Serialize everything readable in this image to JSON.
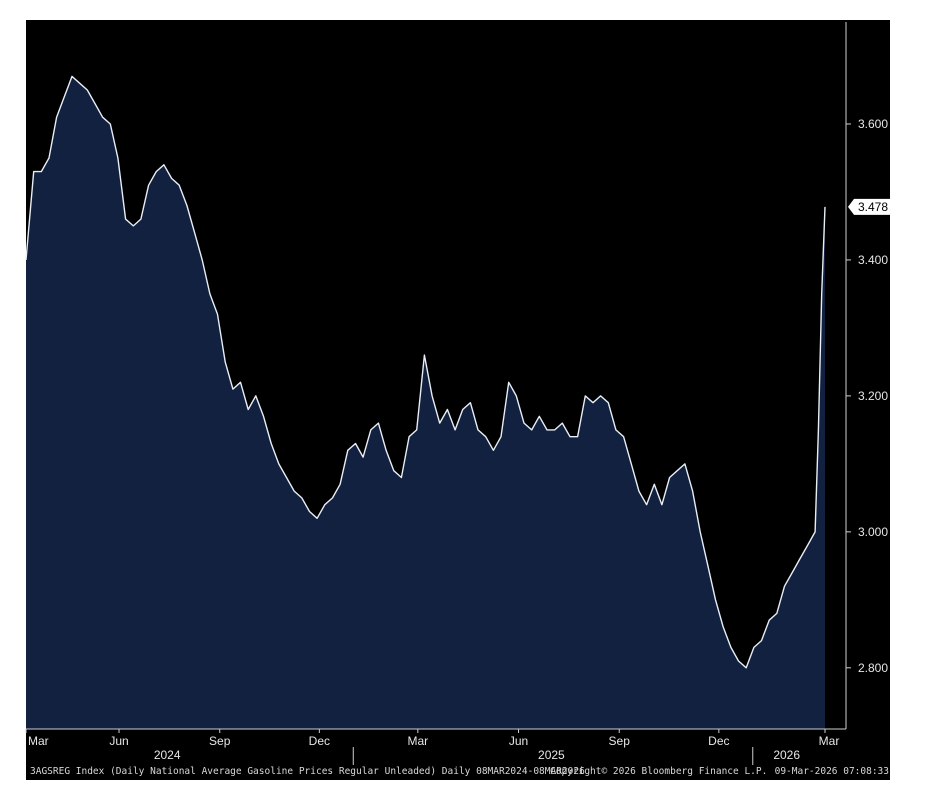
{
  "chart_data": {
    "type": "area",
    "series": [
      {
        "values": [
          [
            "2024-03-08",
            3.4
          ],
          [
            "2024-03-15",
            3.53
          ],
          [
            "2024-03-22",
            3.53
          ],
          [
            "2024-03-29",
            3.55
          ],
          [
            "2024-04-05",
            3.61
          ],
          [
            "2024-04-12",
            3.64
          ],
          [
            "2024-04-19",
            3.67
          ],
          [
            "2024-04-26",
            3.66
          ],
          [
            "2024-05-03",
            3.65
          ],
          [
            "2024-05-10",
            3.63
          ],
          [
            "2024-05-17",
            3.61
          ],
          [
            "2024-05-24",
            3.6
          ],
          [
            "2024-05-31",
            3.55
          ],
          [
            "2024-06-07",
            3.46
          ],
          [
            "2024-06-14",
            3.45
          ],
          [
            "2024-06-21",
            3.46
          ],
          [
            "2024-06-28",
            3.51
          ],
          [
            "2024-07-05",
            3.53
          ],
          [
            "2024-07-12",
            3.54
          ],
          [
            "2024-07-19",
            3.52
          ],
          [
            "2024-07-26",
            3.51
          ],
          [
            "2024-08-02",
            3.48
          ],
          [
            "2024-08-09",
            3.44
          ],
          [
            "2024-08-16",
            3.4
          ],
          [
            "2024-08-23",
            3.35
          ],
          [
            "2024-08-30",
            3.32
          ],
          [
            "2024-09-06",
            3.25
          ],
          [
            "2024-09-13",
            3.21
          ],
          [
            "2024-09-20",
            3.22
          ],
          [
            "2024-09-27",
            3.18
          ],
          [
            "2024-10-04",
            3.2
          ],
          [
            "2024-10-11",
            3.17
          ],
          [
            "2024-10-18",
            3.13
          ],
          [
            "2024-10-25",
            3.1
          ],
          [
            "2024-11-01",
            3.08
          ],
          [
            "2024-11-08",
            3.06
          ],
          [
            "2024-11-15",
            3.05
          ],
          [
            "2024-11-22",
            3.03
          ],
          [
            "2024-11-29",
            3.02
          ],
          [
            "2024-12-06",
            3.04
          ],
          [
            "2024-12-13",
            3.05
          ],
          [
            "2024-12-20",
            3.07
          ],
          [
            "2024-12-27",
            3.12
          ],
          [
            "2025-01-03",
            3.13
          ],
          [
            "2025-01-10",
            3.11
          ],
          [
            "2025-01-17",
            3.15
          ],
          [
            "2025-01-24",
            3.16
          ],
          [
            "2025-01-31",
            3.12
          ],
          [
            "2025-02-07",
            3.09
          ],
          [
            "2025-02-14",
            3.08
          ],
          [
            "2025-02-21",
            3.14
          ],
          [
            "2025-02-28",
            3.15
          ],
          [
            "2025-03-07",
            3.26
          ],
          [
            "2025-03-14",
            3.2
          ],
          [
            "2025-03-21",
            3.16
          ],
          [
            "2025-03-28",
            3.18
          ],
          [
            "2025-04-04",
            3.15
          ],
          [
            "2025-04-11",
            3.18
          ],
          [
            "2025-04-18",
            3.19
          ],
          [
            "2025-04-25",
            3.15
          ],
          [
            "2025-05-02",
            3.14
          ],
          [
            "2025-05-09",
            3.12
          ],
          [
            "2025-05-16",
            3.14
          ],
          [
            "2025-05-23",
            3.22
          ],
          [
            "2025-05-30",
            3.2
          ],
          [
            "2025-06-06",
            3.16
          ],
          [
            "2025-06-13",
            3.15
          ],
          [
            "2025-06-20",
            3.17
          ],
          [
            "2025-06-27",
            3.15
          ],
          [
            "2025-07-04",
            3.15
          ],
          [
            "2025-07-11",
            3.16
          ],
          [
            "2025-07-18",
            3.14
          ],
          [
            "2025-07-25",
            3.14
          ],
          [
            "2025-08-01",
            3.2
          ],
          [
            "2025-08-08",
            3.19
          ],
          [
            "2025-08-15",
            3.2
          ],
          [
            "2025-08-22",
            3.19
          ],
          [
            "2025-08-29",
            3.15
          ],
          [
            "2025-09-05",
            3.14
          ],
          [
            "2025-09-12",
            3.1
          ],
          [
            "2025-09-19",
            3.06
          ],
          [
            "2025-09-26",
            3.04
          ],
          [
            "2025-10-03",
            3.07
          ],
          [
            "2025-10-10",
            3.04
          ],
          [
            "2025-10-17",
            3.08
          ],
          [
            "2025-10-24",
            3.09
          ],
          [
            "2025-10-31",
            3.1
          ],
          [
            "2025-11-07",
            3.06
          ],
          [
            "2025-11-14",
            3.0
          ],
          [
            "2025-11-21",
            2.95
          ],
          [
            "2025-11-28",
            2.9
          ],
          [
            "2025-12-05",
            2.86
          ],
          [
            "2025-12-12",
            2.83
          ],
          [
            "2025-12-19",
            2.81
          ],
          [
            "2025-12-26",
            2.8
          ],
          [
            "2026-01-02",
            2.83
          ],
          [
            "2026-01-09",
            2.84
          ],
          [
            "2026-01-16",
            2.87
          ],
          [
            "2026-01-23",
            2.88
          ],
          [
            "2026-01-30",
            2.92
          ],
          [
            "2026-02-06",
            2.94
          ],
          [
            "2026-02-13",
            2.96
          ],
          [
            "2026-02-20",
            2.98
          ],
          [
            "2026-02-27",
            3.0
          ],
          [
            "2026-03-02",
            3.15
          ],
          [
            "2026-03-05",
            3.35
          ],
          [
            "2026-03-08",
            3.478
          ]
        ]
      }
    ],
    "ylim": [
      2.71,
      3.75
    ],
    "y_ticks": [
      "3.600",
      "3.400",
      "3.200",
      "3.000",
      "2.800"
    ],
    "x_month_labels": [
      [
        "2024-03-08",
        "Mar"
      ],
      [
        "2024-06-01",
        "Jun"
      ],
      [
        "2024-09-01",
        "Sep"
      ],
      [
        "2024-12-01",
        "Dec"
      ],
      [
        "2025-03-01",
        "Mar"
      ],
      [
        "2025-06-01",
        "Jun"
      ],
      [
        "2025-09-01",
        "Sep"
      ],
      [
        "2025-12-01",
        "Dec"
      ],
      [
        "2026-03-08",
        "Mar"
      ]
    ],
    "x_year_labels": [
      [
        "2024-07-15",
        "2024"
      ],
      [
        "2025-07-01",
        "2025"
      ],
      [
        "2026-02-01",
        "2026"
      ]
    ],
    "year_dividers": [
      "2025-01-01",
      "2026-01-01"
    ],
    "x_range": [
      "2024-03-08",
      "2026-03-08"
    ],
    "last_value_label": "3.478",
    "grid": false,
    "colors": {
      "background": "#000000",
      "area_fill": "#11213f",
      "line": "#e8eef5",
      "axis": "#cfcfcf",
      "tag_bg": "#ffffff",
      "tag_text": "#000000"
    }
  },
  "footer": {
    "left": "3AGSREG Index (Daily National Average Gasoline Prices Regular Unleaded) Daily 08MAR2024-08MAR2026",
    "center": "Copyright© 2026 Bloomberg Finance L.P.",
    "right": "09-Mar-2026 07:08:33"
  }
}
